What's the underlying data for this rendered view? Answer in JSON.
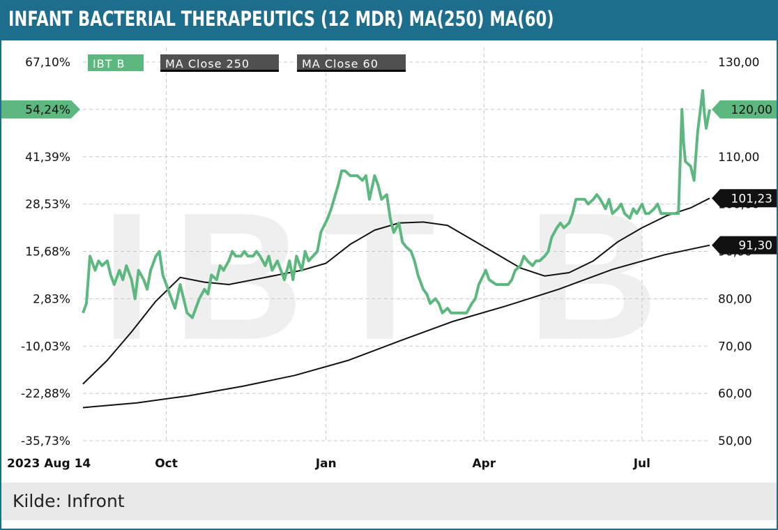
{
  "title": "INFANT BACTERIAL THERAPEUTICS (12 MDR) MA(250) MA(60)",
  "source": "Kilde: Infront",
  "chart_data": {
    "type": "line",
    "watermark": "IBT B",
    "left_axis": {
      "tick_labels": [
        "67,10%",
        "54,24%",
        "41,39%",
        "28,53%",
        "15,68%",
        "2,83%",
        "-10,03%",
        "-22,88%",
        "-35,73%"
      ]
    },
    "right_axis": {
      "tick_labels": [
        "130,00",
        "120,00",
        "110,00",
        "100,00",
        "90,00",
        "80,00",
        "70,00",
        "60,00",
        "50,00"
      ],
      "range": [
        50,
        130
      ]
    },
    "x_tick_labels": [
      "2023 Aug 14",
      "Oct",
      "Jan",
      "Apr",
      "Jul"
    ],
    "x_range": [
      "2023-08-14",
      "2024-08-09"
    ],
    "x_ticks": [
      "2023-10-01",
      "2024-01-01",
      "2024-04-01",
      "2024-07-01"
    ],
    "grid": true,
    "legend_position": "top-left",
    "series": [
      {
        "name": "IBT B",
        "color": "#5cb87f",
        "last_label": "120,00",
        "points": [
          [
            "2023-08-14",
            77
          ],
          [
            "2023-08-16",
            79
          ],
          [
            "2023-08-18",
            89
          ],
          [
            "2023-08-21",
            86
          ],
          [
            "2023-08-23",
            88
          ],
          [
            "2023-08-25",
            87
          ],
          [
            "2023-08-28",
            88
          ],
          [
            "2023-08-30",
            85
          ],
          [
            "2023-09-01",
            83
          ],
          [
            "2023-09-04",
            86
          ],
          [
            "2023-09-06",
            84
          ],
          [
            "2023-09-08",
            87
          ],
          [
            "2023-09-11",
            84
          ],
          [
            "2023-09-13",
            80
          ],
          [
            "2023-09-15",
            86
          ],
          [
            "2023-09-18",
            84
          ],
          [
            "2023-09-20",
            82
          ],
          [
            "2023-09-22",
            86
          ],
          [
            "2023-09-25",
            89
          ],
          [
            "2023-09-27",
            90
          ],
          [
            "2023-09-29",
            85
          ],
          [
            "2023-10-02",
            82
          ],
          [
            "2023-10-04",
            80
          ],
          [
            "2023-10-06",
            78
          ],
          [
            "2023-10-09",
            83
          ],
          [
            "2023-10-11",
            80
          ],
          [
            "2023-10-13",
            77
          ],
          [
            "2023-10-16",
            76
          ],
          [
            "2023-10-18",
            78
          ],
          [
            "2023-10-20",
            80
          ],
          [
            "2023-10-23",
            82
          ],
          [
            "2023-10-25",
            81
          ],
          [
            "2023-10-27",
            85
          ],
          [
            "2023-10-30",
            84
          ],
          [
            "2023-11-01",
            87
          ],
          [
            "2023-11-03",
            86
          ],
          [
            "2023-11-06",
            88
          ],
          [
            "2023-11-08",
            90
          ],
          [
            "2023-11-10",
            89
          ],
          [
            "2023-11-13",
            89
          ],
          [
            "2023-11-15",
            90
          ],
          [
            "2023-11-17",
            89
          ],
          [
            "2023-11-20",
            89
          ],
          [
            "2023-11-22",
            90
          ],
          [
            "2023-11-24",
            89
          ],
          [
            "2023-11-27",
            87
          ],
          [
            "2023-11-29",
            89
          ],
          [
            "2023-12-01",
            86
          ],
          [
            "2023-12-04",
            88
          ],
          [
            "2023-12-06",
            86
          ],
          [
            "2023-12-08",
            84
          ],
          [
            "2023-12-11",
            88
          ],
          [
            "2023-12-13",
            84
          ],
          [
            "2023-12-15",
            89
          ],
          [
            "2023-12-18",
            86
          ],
          [
            "2023-12-20",
            90
          ],
          [
            "2023-12-22",
            88
          ],
          [
            "2023-12-27",
            90
          ],
          [
            "2023-12-29",
            94
          ],
          [
            "2024-01-02",
            97
          ],
          [
            "2024-01-04",
            99
          ],
          [
            "2024-01-08",
            104
          ],
          [
            "2024-01-10",
            107
          ],
          [
            "2024-01-12",
            107
          ],
          [
            "2024-01-15",
            106
          ],
          [
            "2024-01-17",
            106
          ],
          [
            "2024-01-19",
            106
          ],
          [
            "2024-01-22",
            105
          ],
          [
            "2024-01-24",
            106
          ],
          [
            "2024-01-26",
            101
          ],
          [
            "2024-01-29",
            106
          ],
          [
            "2024-01-31",
            104
          ],
          [
            "2024-02-02",
            101
          ],
          [
            "2024-02-05",
            102
          ],
          [
            "2024-02-07",
            97
          ],
          [
            "2024-02-09",
            94
          ],
          [
            "2024-02-12",
            96
          ],
          [
            "2024-02-14",
            92
          ],
          [
            "2024-02-16",
            91
          ],
          [
            "2024-02-19",
            90
          ],
          [
            "2024-02-21",
            88
          ],
          [
            "2024-02-23",
            85
          ],
          [
            "2024-02-26",
            82
          ],
          [
            "2024-02-28",
            81
          ],
          [
            "2024-03-01",
            79
          ],
          [
            "2024-03-04",
            80
          ],
          [
            "2024-03-06",
            79
          ],
          [
            "2024-03-08",
            77
          ],
          [
            "2024-03-11",
            78
          ],
          [
            "2024-03-13",
            77
          ],
          [
            "2024-03-15",
            77
          ],
          [
            "2024-03-18",
            77
          ],
          [
            "2024-03-20",
            77
          ],
          [
            "2024-03-22",
            77
          ],
          [
            "2024-03-25",
            79
          ],
          [
            "2024-03-27",
            80
          ],
          [
            "2024-03-29",
            83
          ],
          [
            "2024-04-02",
            86
          ],
          [
            "2024-04-04",
            84
          ],
          [
            "2024-04-08",
            83
          ],
          [
            "2024-04-10",
            83
          ],
          [
            "2024-04-12",
            83
          ],
          [
            "2024-04-15",
            83
          ],
          [
            "2024-04-17",
            84
          ],
          [
            "2024-04-19",
            86
          ],
          [
            "2024-04-22",
            87
          ],
          [
            "2024-04-24",
            89
          ],
          [
            "2024-04-26",
            88
          ],
          [
            "2024-04-29",
            87
          ],
          [
            "2024-05-01",
            88
          ],
          [
            "2024-05-03",
            88
          ],
          [
            "2024-05-06",
            89
          ],
          [
            "2024-05-08",
            90
          ],
          [
            "2024-05-10",
            93
          ],
          [
            "2024-05-13",
            95
          ],
          [
            "2024-05-15",
            96
          ],
          [
            "2024-05-17",
            95
          ],
          [
            "2024-05-20",
            96
          ],
          [
            "2024-05-22",
            98
          ],
          [
            "2024-05-24",
            101
          ],
          [
            "2024-05-27",
            101
          ],
          [
            "2024-05-29",
            101
          ],
          [
            "2024-05-31",
            100
          ],
          [
            "2024-06-03",
            101
          ],
          [
            "2024-06-05",
            102
          ],
          [
            "2024-06-07",
            101
          ],
          [
            "2024-06-10",
            99
          ],
          [
            "2024-06-12",
            101
          ],
          [
            "2024-06-14",
            98
          ],
          [
            "2024-06-17",
            99
          ],
          [
            "2024-06-19",
            100
          ],
          [
            "2024-06-21",
            98
          ],
          [
            "2024-06-24",
            97
          ],
          [
            "2024-06-26",
            99
          ],
          [
            "2024-06-28",
            98
          ],
          [
            "2024-07-01",
            100
          ],
          [
            "2024-07-03",
            98
          ],
          [
            "2024-07-05",
            98
          ],
          [
            "2024-07-08",
            99
          ],
          [
            "2024-07-10",
            100
          ],
          [
            "2024-07-12",
            98
          ],
          [
            "2024-07-15",
            98
          ],
          [
            "2024-07-17",
            98
          ],
          [
            "2024-07-19",
            98
          ],
          [
            "2024-07-22",
            98
          ],
          [
            "2024-07-23",
            109
          ],
          [
            "2024-07-24",
            120
          ],
          [
            "2024-07-25",
            113
          ],
          [
            "2024-07-26",
            109
          ],
          [
            "2024-07-29",
            108
          ],
          [
            "2024-07-31",
            105
          ],
          [
            "2024-08-02",
            115
          ],
          [
            "2024-08-05",
            124
          ],
          [
            "2024-08-06",
            119
          ],
          [
            "2024-08-07",
            116
          ],
          [
            "2024-08-09",
            120
          ]
        ]
      },
      {
        "name": "MA  Close  250",
        "color": "#111111",
        "last_label": "91,30",
        "points": [
          [
            "2023-08-14",
            57
          ],
          [
            "2023-09-14",
            58
          ],
          [
            "2023-10-14",
            59.5
          ],
          [
            "2023-11-14",
            61.5
          ],
          [
            "2023-12-14",
            63.8
          ],
          [
            "2024-01-14",
            67
          ],
          [
            "2024-02-14",
            71.3
          ],
          [
            "2024-03-14",
            75.2
          ],
          [
            "2024-04-14",
            78.5
          ],
          [
            "2024-05-14",
            82
          ],
          [
            "2024-06-14",
            86.2
          ],
          [
            "2024-07-14",
            89.3
          ],
          [
            "2024-08-09",
            91.3
          ]
        ]
      },
      {
        "name": "MA  Close  60",
        "color": "#111111",
        "last_label": "101,23",
        "points": [
          [
            "2023-08-14",
            62
          ],
          [
            "2023-08-28",
            67
          ],
          [
            "2023-09-11",
            73
          ],
          [
            "2023-09-25",
            79.5
          ],
          [
            "2023-10-09",
            84.5
          ],
          [
            "2023-10-23",
            83.5
          ],
          [
            "2023-11-06",
            83
          ],
          [
            "2023-11-20",
            84
          ],
          [
            "2023-12-04",
            85
          ],
          [
            "2023-12-18",
            86
          ],
          [
            "2024-01-01",
            87.5
          ],
          [
            "2024-01-15",
            91.5
          ],
          [
            "2024-01-29",
            94.5
          ],
          [
            "2024-02-12",
            96
          ],
          [
            "2024-02-26",
            96.2
          ],
          [
            "2024-03-11",
            95.5
          ],
          [
            "2024-03-25",
            92.5
          ],
          [
            "2024-04-08",
            89.5
          ],
          [
            "2024-04-22",
            86.5
          ],
          [
            "2024-05-06",
            84.8
          ],
          [
            "2024-05-20",
            85.5
          ],
          [
            "2024-06-03",
            88
          ],
          [
            "2024-06-17",
            92
          ],
          [
            "2024-07-01",
            95
          ],
          [
            "2024-07-15",
            97.5
          ],
          [
            "2024-07-29",
            99.2
          ],
          [
            "2024-08-09",
            101.23
          ]
        ]
      }
    ]
  }
}
